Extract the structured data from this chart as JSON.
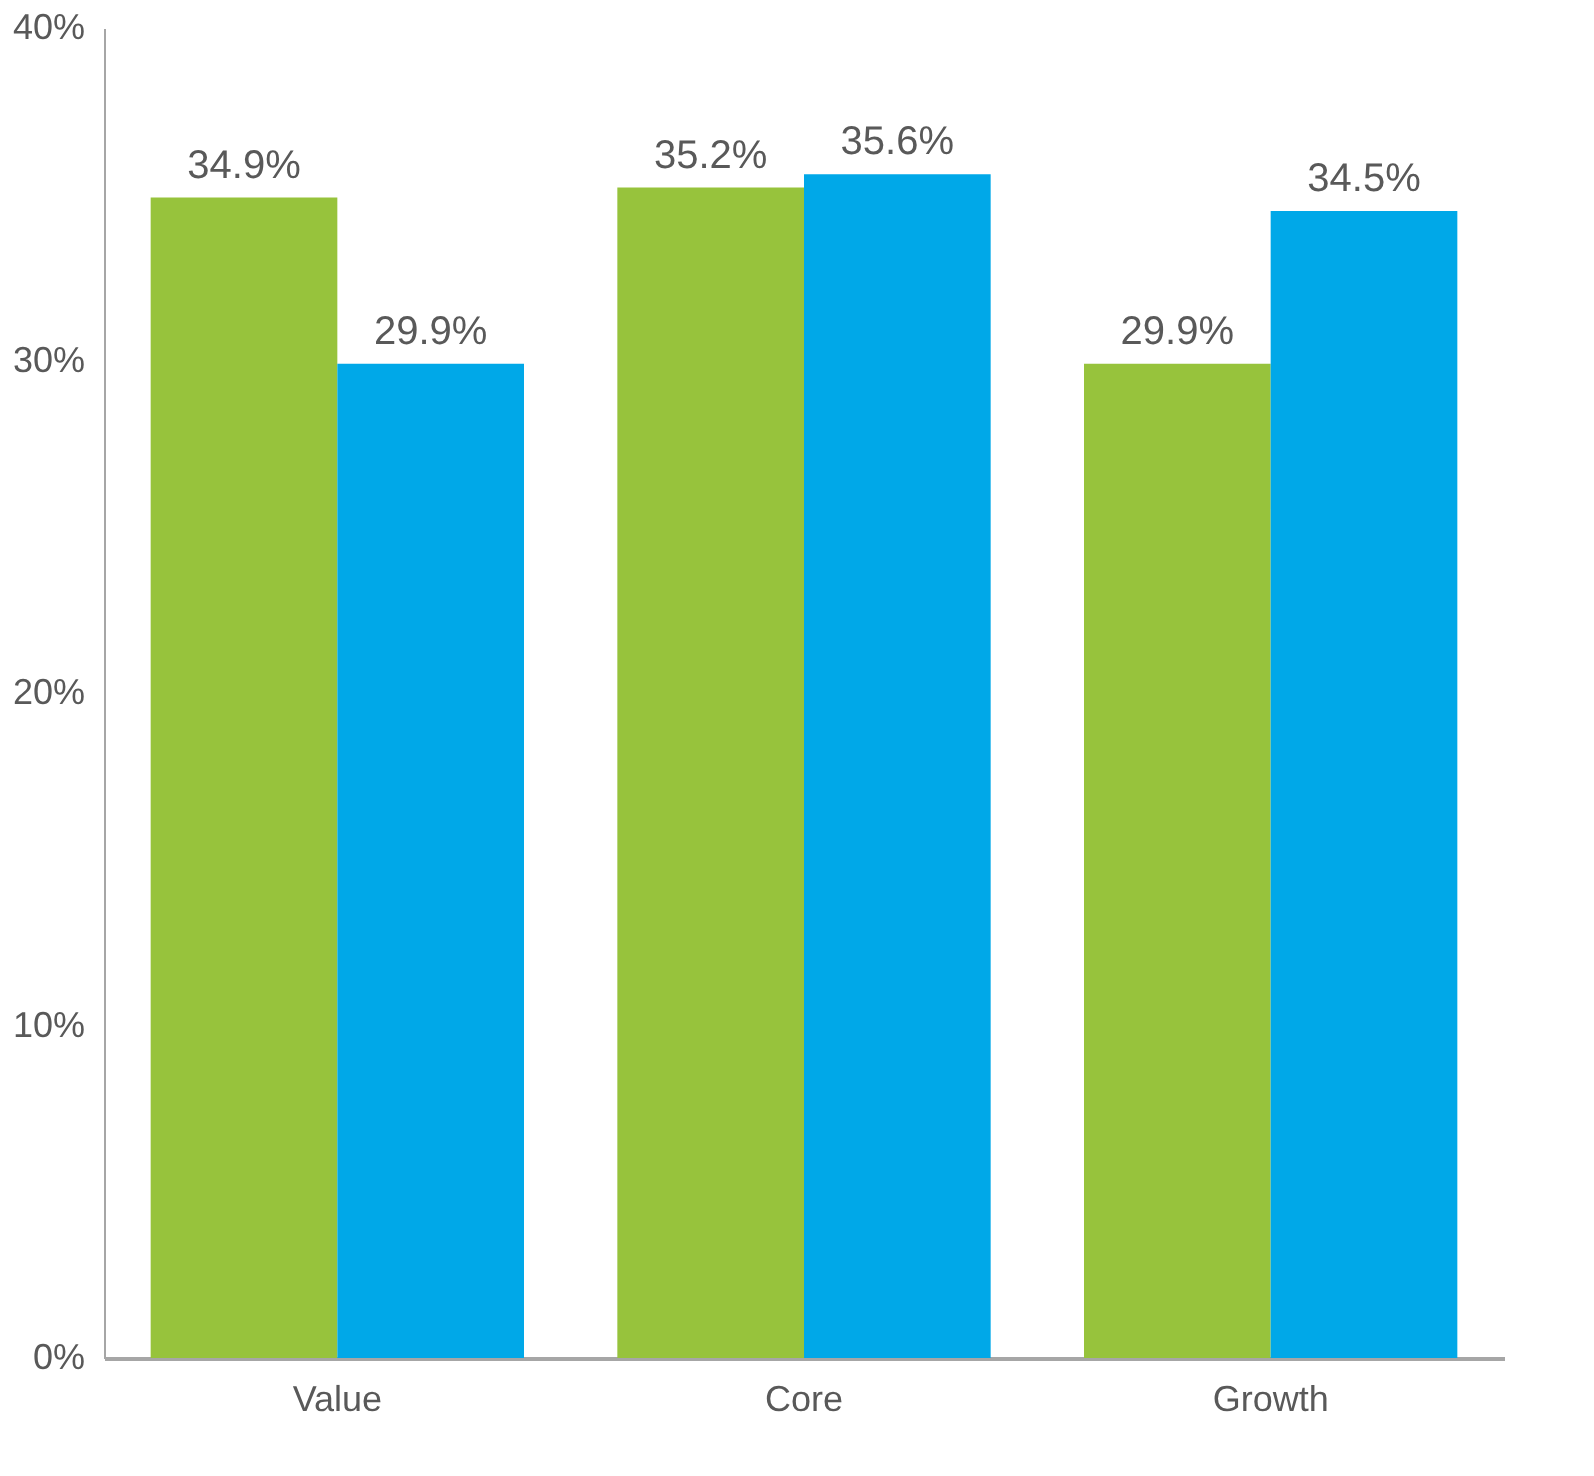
{
  "chart_data": {
    "type": "bar",
    "categories": [
      "Value",
      "Core",
      "Growth"
    ],
    "series": [
      {
        "color": "#97c33c",
        "values": [
          34.9,
          35.2,
          29.9
        ],
        "value_labels": [
          "34.9%",
          "35.2%",
          "29.9%"
        ]
      },
      {
        "color": "#00a8e8",
        "values": [
          29.9,
          35.6,
          34.5
        ],
        "value_labels": [
          "29.9%",
          "35.6%",
          "34.5%"
        ]
      }
    ],
    "ylim": [
      0,
      40
    ],
    "yticks": [
      {
        "value": 0,
        "label": "0%"
      },
      {
        "value": 10,
        "label": "10%"
      },
      {
        "value": 20,
        "label": "20%"
      },
      {
        "value": 30,
        "label": "30%"
      },
      {
        "value": 40,
        "label": "40%"
      }
    ],
    "grid": false
  }
}
